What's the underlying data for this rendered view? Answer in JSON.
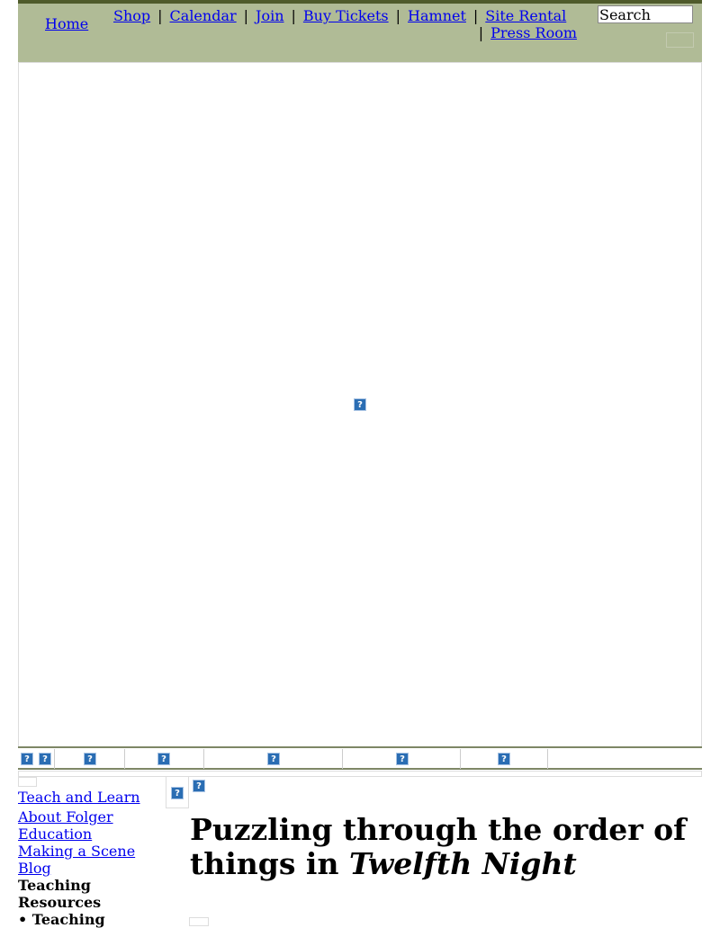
{
  "header": {
    "home": "Home",
    "links": [
      "Shop",
      "Calendar",
      "Join",
      "Buy Tickets",
      "Hamnet",
      "Site Rental",
      "Press Room"
    ],
    "separator": "|",
    "search_placeholder": "Search"
  },
  "broken_image_glyph": "?",
  "sidebar": {
    "section": "Teach and Learn",
    "items": [
      "About Folger Education",
      "Making a Scene",
      "Blog"
    ],
    "current_heading": "Teaching Resources",
    "sub_item": "• Teaching"
  },
  "article": {
    "title_plain": "Puzzling through the order of things in ",
    "title_italic": "Twelfth Night"
  },
  "colors": {
    "header_bg": "#b0bb96",
    "header_top": "#4f5b2b",
    "link": "#0000ee"
  }
}
